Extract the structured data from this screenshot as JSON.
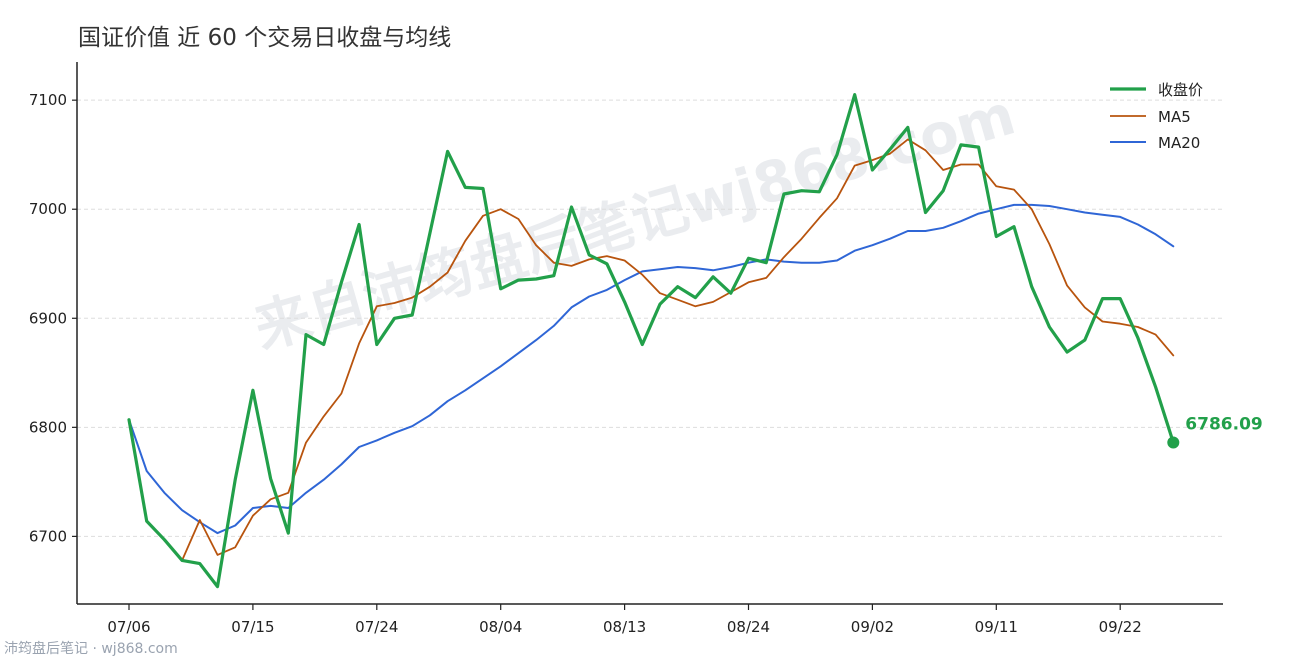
{
  "title": "国证价值 近 60 个交易日收盘与均线",
  "watermark": "来自沛筠盘后笔记wj868.com",
  "footer": "沛筠盘后笔记 · wj868.com",
  "chart_data": {
    "type": "line",
    "title": "国证价值 近 60 个交易日收盘与均线",
    "xlabel": "",
    "ylabel": "",
    "ylim": [
      6638,
      7135
    ],
    "yticks": [
      6700,
      6800,
      6900,
      7000,
      7100
    ],
    "xtick_labels": [
      "07/06",
      "07/15",
      "07/24",
      "08/04",
      "08/13",
      "08/24",
      "09/02",
      "09/11",
      "09/22"
    ],
    "xtick_indices": [
      0,
      7,
      14,
      21,
      28,
      35,
      42,
      49,
      56
    ],
    "grid": "horizontal dashed",
    "legend_position": "top-right",
    "last_value_label": "6786.09",
    "series": [
      {
        "name": "收盘价",
        "color": "#22a04a",
        "values": [
          6807,
          6714,
          6697,
          6678,
          6675,
          6654,
          6752,
          6834,
          6753,
          6703,
          6885,
          6876,
          6933,
          6986,
          6876,
          6900,
          6903,
          6978,
          7053,
          7020,
          7019,
          6927,
          6935,
          6936,
          6939,
          7002,
          6958,
          6950,
          6915,
          6876,
          6913,
          6929,
          6919,
          6938,
          6923,
          6955,
          6951,
          7014,
          7017,
          7016,
          7050,
          7105,
          7036,
          7055,
          7075,
          6997,
          7017,
          7059,
          7057,
          6975,
          6984,
          6929,
          6892,
          6869,
          6880,
          6918,
          6918,
          6882,
          6837,
          6786.09
        ]
      },
      {
        "name": "MA5",
        "color": "#b8540e",
        "values": [
          6807,
          6714,
          6697,
          6678,
          6715,
          6683,
          6690,
          6719,
          6734,
          6740,
          6786,
          6810,
          6831,
          6877,
          6911,
          6914,
          6919,
          6929,
          6942,
          6971,
          6994,
          7000,
          6991,
          6967,
          6951,
          6948,
          6954,
          6957,
          6953,
          6940,
          6923,
          6917,
          6911,
          6915,
          6924,
          6933,
          6937,
          6956,
          6973,
          6992,
          7010,
          7040,
          7045,
          7051,
          7064,
          7054,
          7036,
          7041,
          7041,
          7021,
          7018,
          7000,
          6968,
          6930,
          6910,
          6897,
          6895,
          6892,
          6885,
          6866
        ]
      },
      {
        "name": "MA20",
        "color": "#2f66d6",
        "values": [
          6807,
          6760,
          6740,
          6724,
          6713,
          6703,
          6710,
          6726,
          6728,
          6726,
          6740,
          6752,
          6766,
          6782,
          6788,
          6795,
          6801,
          6811,
          6824,
          6834,
          6845,
          6856,
          6868,
          6880,
          6893,
          6910,
          6920,
          6926,
          6935,
          6943,
          6945,
          6947,
          6946,
          6944,
          6947,
          6951,
          6954,
          6952,
          6951,
          6951,
          6953,
          6962,
          6967,
          6973,
          6980,
          6980,
          6983,
          6989,
          6996,
          7000,
          7004,
          7004,
          7003,
          7000,
          6997,
          6995,
          6993,
          6986,
          6977,
          6966
        ]
      }
    ]
  }
}
